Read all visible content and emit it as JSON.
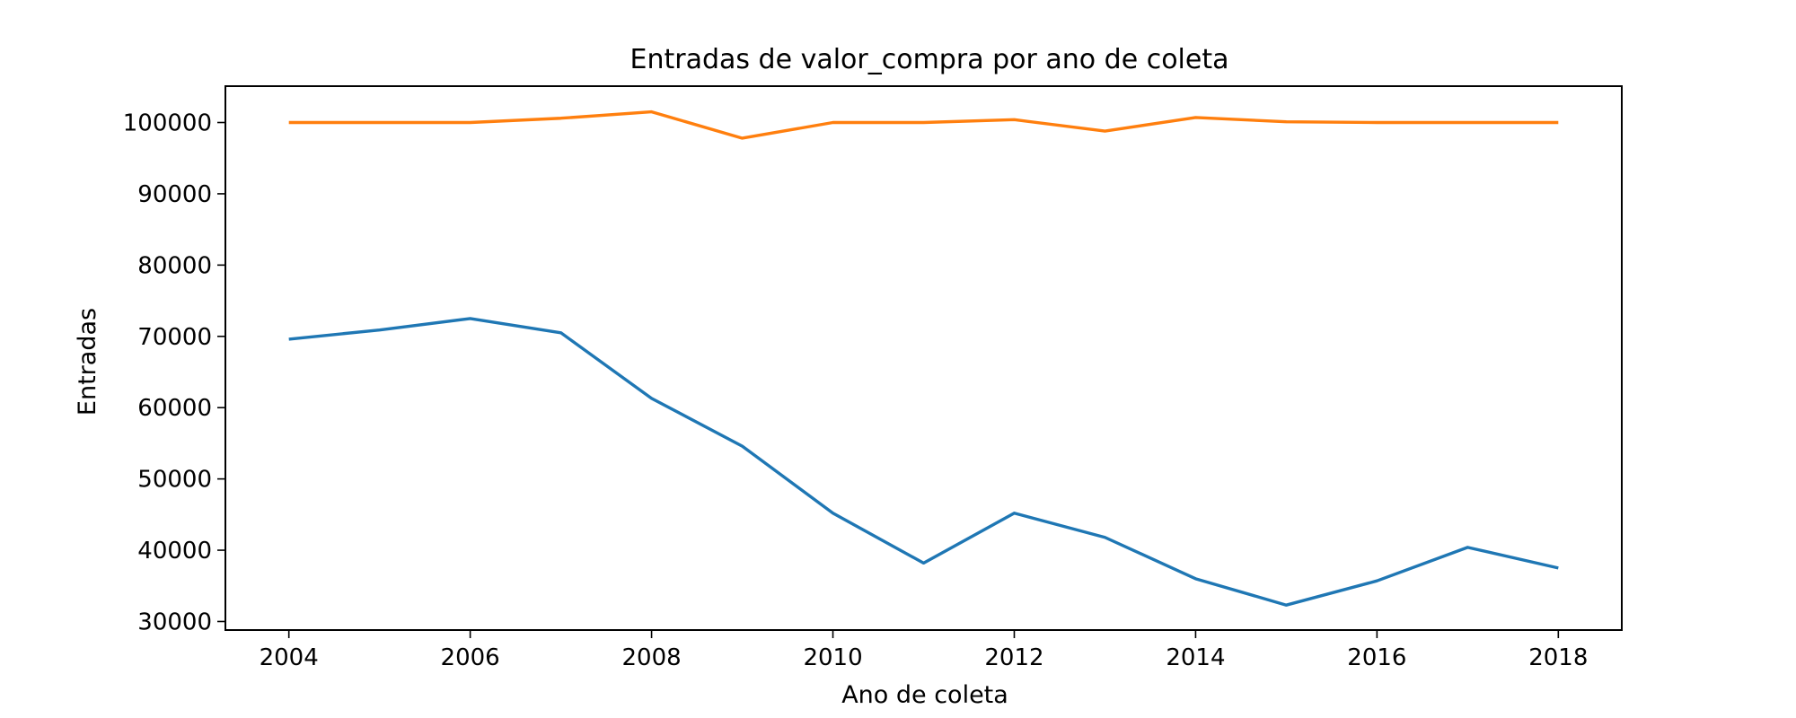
{
  "chart_data": {
    "type": "line",
    "title": "Entradas de valor_compra por ano de coleta",
    "xlabel": "Ano de coleta",
    "ylabel": "Entradas",
    "x": [
      2004,
      2005,
      2006,
      2007,
      2008,
      2009,
      2010,
      2011,
      2012,
      2013,
      2014,
      2015,
      2016,
      2017,
      2018
    ],
    "xlim": [
      2003.3,
      2018.7
    ],
    "ylim": [
      28800,
      105100
    ],
    "x_ticks": [
      2004,
      2006,
      2008,
      2010,
      2012,
      2014,
      2016,
      2018
    ],
    "y_ticks": [
      30000,
      40000,
      50000,
      60000,
      70000,
      80000,
      90000,
      100000
    ],
    "x_tick_labels": [
      "2004",
      "2006",
      "2008",
      "2010",
      "2012",
      "2014",
      "2016",
      "2018"
    ],
    "y_tick_labels": [
      "30000",
      "40000",
      "50000",
      "60000",
      "70000",
      "80000",
      "90000",
      "100000"
    ],
    "grid": false,
    "series": [
      {
        "color": "#1f77b4",
        "values": [
          69600,
          70900,
          72500,
          70500,
          61300,
          54600,
          45200,
          38200,
          45200,
          41800,
          36000,
          32300,
          35700,
          40400,
          37500
        ]
      },
      {
        "color": "#ff7f0e",
        "values": [
          100000,
          100000,
          100000,
          100600,
          101500,
          97800,
          100000,
          100000,
          100400,
          98800,
          100700,
          100100,
          100000,
          100000,
          100000
        ]
      }
    ]
  }
}
